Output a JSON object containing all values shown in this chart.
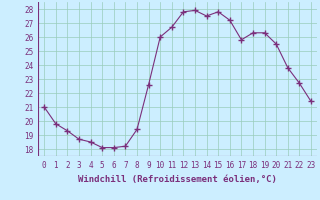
{
  "x": [
    0,
    1,
    2,
    3,
    4,
    5,
    6,
    7,
    8,
    9,
    10,
    11,
    12,
    13,
    14,
    15,
    16,
    17,
    18,
    19,
    20,
    21,
    22,
    23
  ],
  "y": [
    21.0,
    19.8,
    19.3,
    18.7,
    18.5,
    18.1,
    18.1,
    18.2,
    19.4,
    22.6,
    26.0,
    26.7,
    27.8,
    27.9,
    27.5,
    27.8,
    27.2,
    25.8,
    26.3,
    26.3,
    25.5,
    23.8,
    22.7,
    21.4
  ],
  "xlim": [
    -0.5,
    23.5
  ],
  "ylim": [
    17.5,
    28.5
  ],
  "yticks": [
    18,
    19,
    20,
    21,
    22,
    23,
    24,
    25,
    26,
    27,
    28
  ],
  "xticks": [
    0,
    1,
    2,
    3,
    4,
    5,
    6,
    7,
    8,
    9,
    10,
    11,
    12,
    13,
    14,
    15,
    16,
    17,
    18,
    19,
    20,
    21,
    22,
    23
  ],
  "xlabel": "Windchill (Refroidissement éolien,°C)",
  "line_color": "#7b2f7b",
  "marker": "+",
  "marker_size": 4,
  "bg_color": "#cceeff",
  "grid_color": "#99ccbb",
  "tick_label_fontsize": 5.5,
  "xlabel_fontsize": 6.5
}
